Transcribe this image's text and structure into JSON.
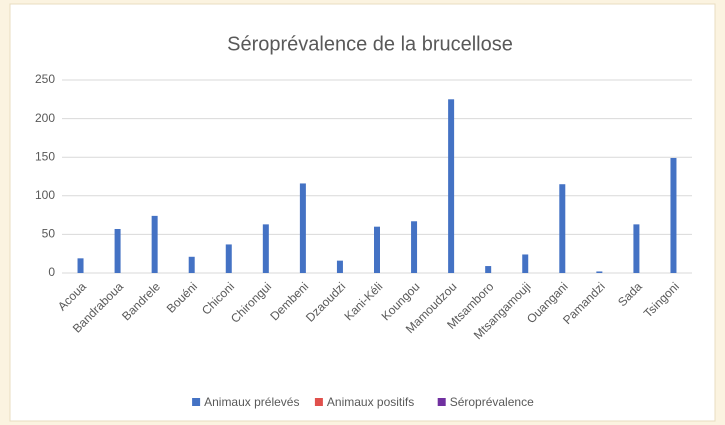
{
  "chart_data": {
    "type": "bar",
    "title": "Séroprévalence de la brucellose",
    "categories": [
      "Acoua",
      "Bandraboua",
      "Bandrele",
      "Bouéni",
      "Chiconi",
      "Chirongui",
      "Dembeni",
      "Dzaoudzi",
      "Kani-Kéli",
      "Koungou",
      "Mamoudzou",
      "Mtsamboro",
      "Mtsangamouji",
      "Ouangani",
      "Pamandzi",
      "Sada",
      "Tsingoni"
    ],
    "series": [
      {
        "name": "Animaux prélevés",
        "color": "#4472c4",
        "values": [
          19,
          57,
          74,
          21,
          37,
          63,
          116,
          16,
          60,
          67,
          225,
          9,
          24,
          115,
          2,
          63,
          149
        ]
      },
      {
        "name": "Animaux positifs",
        "color": "#e0504c",
        "values": [
          0,
          0,
          0,
          0,
          0,
          0,
          0,
          0,
          0,
          0,
          0,
          0,
          0,
          0,
          0,
          0,
          0
        ]
      },
      {
        "name": "Séroprévalence",
        "color": "#7030a0",
        "values": [
          0,
          0,
          0,
          0,
          0,
          0,
          0,
          0,
          0,
          0,
          0,
          0,
          0,
          0,
          0,
          0,
          0
        ]
      }
    ],
    "ylim": [
      0,
      250
    ],
    "yticks": [
      0,
      50,
      100,
      150,
      200,
      250
    ],
    "grid": true,
    "legend": "bottom"
  }
}
